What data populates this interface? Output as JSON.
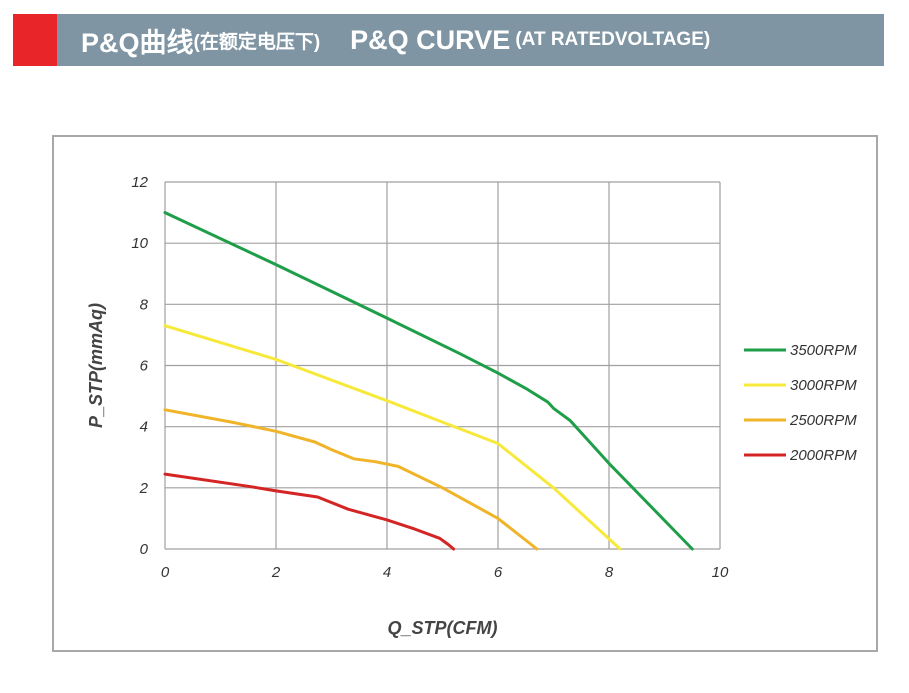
{
  "header": {
    "title_cn": "P&Q曲线",
    "title_cn_note": "(在额定电压下)",
    "title_en": "P&Q CURVE",
    "title_en_note": "(AT RATEDVOLTAGE)",
    "accent_color": "#e8262a",
    "bar_color": "#7f95a3"
  },
  "chart_data": {
    "type": "line",
    "title": "",
    "xlabel": "Q_STP(CFM)",
    "ylabel": "P_STP(mmAq)",
    "xlim": [
      0,
      10
    ],
    "ylim": [
      0,
      12
    ],
    "xticks": [
      0,
      2,
      4,
      6,
      8,
      10
    ],
    "yticks": [
      0,
      2,
      4,
      6,
      8,
      10,
      12
    ],
    "grid": true,
    "legend_position": "right",
    "series": [
      {
        "name": "3500RPM",
        "color": "#1f9e4a",
        "points": [
          [
            0,
            11
          ],
          [
            2,
            9.3
          ],
          [
            4,
            7.55
          ],
          [
            5.3,
            6.4
          ],
          [
            6,
            5.75
          ],
          [
            6.5,
            5.25
          ],
          [
            6.9,
            4.8
          ],
          [
            7.0,
            4.6
          ],
          [
            7.3,
            4.2
          ],
          [
            8,
            2.8
          ],
          [
            9.5,
            0
          ]
        ]
      },
      {
        "name": "3000RPM",
        "color": "#f7e93a",
        "points": [
          [
            0,
            7.3
          ],
          [
            2,
            6.2
          ],
          [
            4,
            4.85
          ],
          [
            5,
            4.15
          ],
          [
            6,
            3.45
          ],
          [
            7,
            2.0
          ],
          [
            8.2,
            0
          ]
        ]
      },
      {
        "name": "2500RPM",
        "color": "#f0b428",
        "points": [
          [
            0,
            4.55
          ],
          [
            1.2,
            4.15
          ],
          [
            2,
            3.85
          ],
          [
            2.7,
            3.5
          ],
          [
            3,
            3.25
          ],
          [
            3.4,
            2.95
          ],
          [
            3.8,
            2.85
          ],
          [
            4.2,
            2.7
          ],
          [
            5,
            2.0
          ],
          [
            6,
            1.0
          ],
          [
            6.7,
            0
          ]
        ]
      },
      {
        "name": "2000RPM",
        "color": "#d42424",
        "points": [
          [
            0,
            2.45
          ],
          [
            1.5,
            2.05
          ],
          [
            2,
            1.9
          ],
          [
            2.75,
            1.7
          ],
          [
            3.3,
            1.3
          ],
          [
            4,
            0.95
          ],
          [
            4.5,
            0.65
          ],
          [
            4.95,
            0.35
          ],
          [
            5.1,
            0.15
          ],
          [
            5.2,
            0
          ]
        ]
      }
    ]
  }
}
